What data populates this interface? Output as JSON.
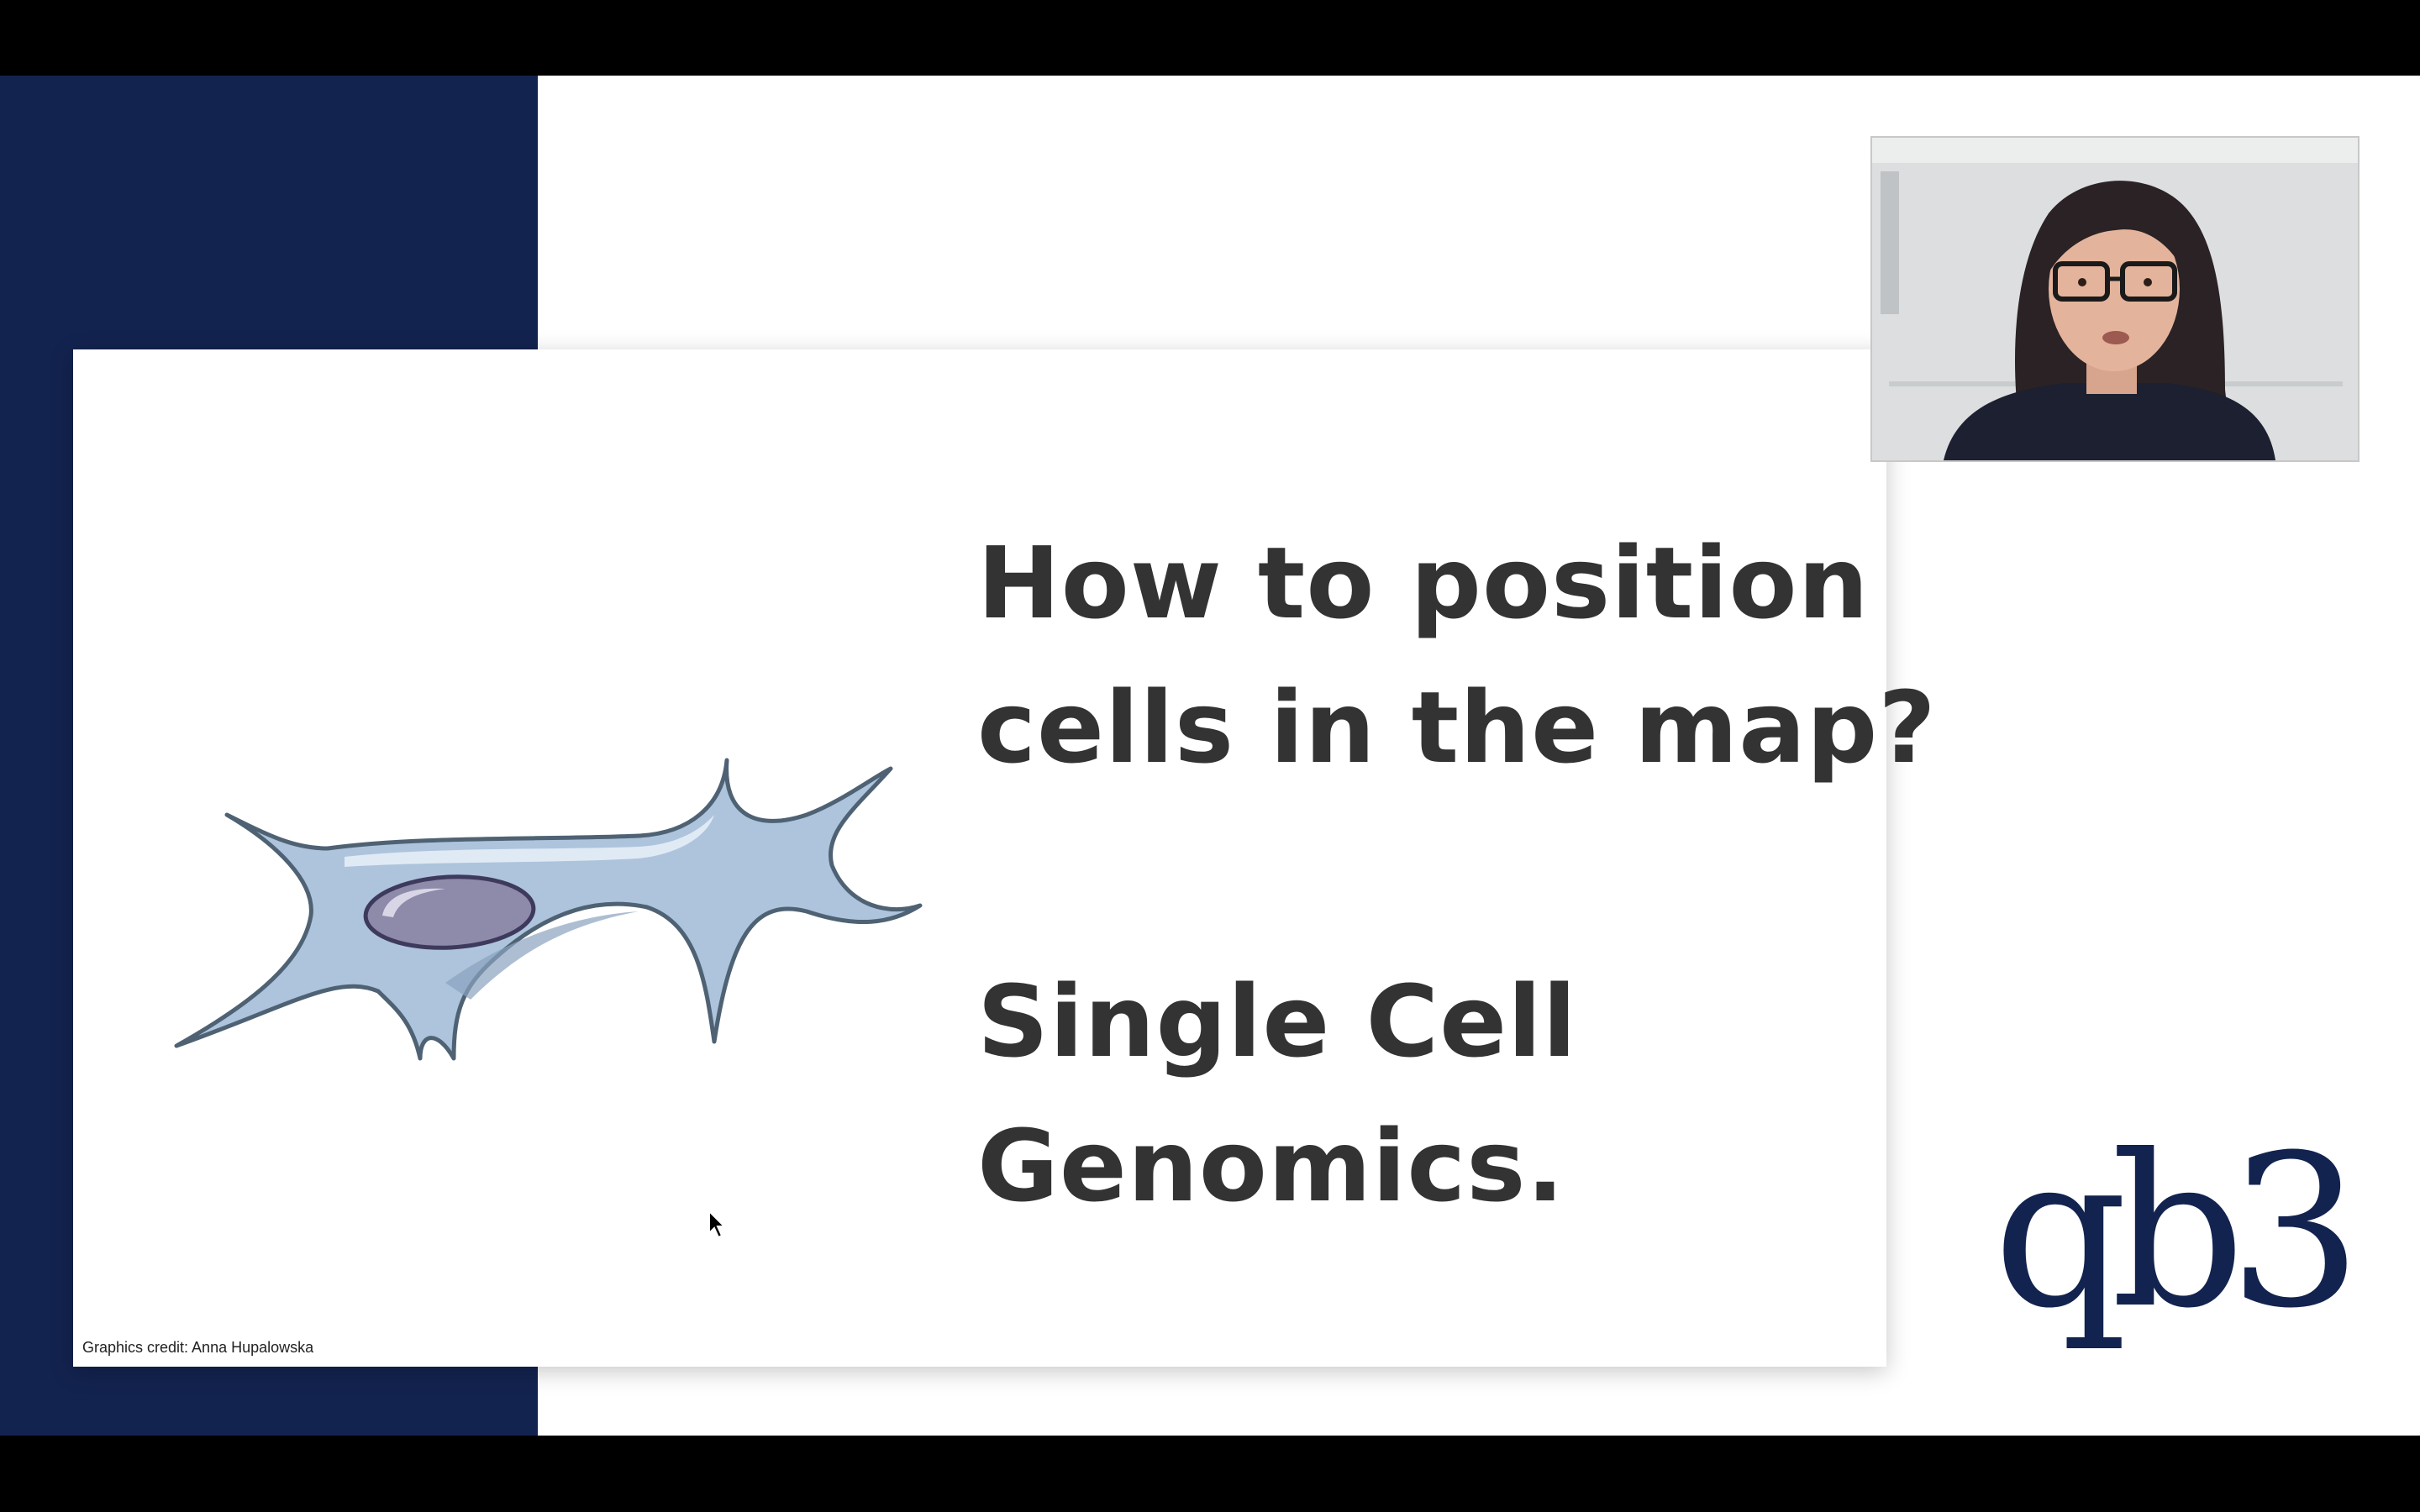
{
  "slide": {
    "title_lines": [
      "How to position",
      "cells in the map?"
    ],
    "subtitle_lines": [
      "Single Cell",
      "Genomics."
    ],
    "credit": "Graphics credit: Anna Hupalowska"
  },
  "branding": {
    "logo_text": "qb3"
  },
  "icons": {
    "cell": "cell-illustration",
    "cursor": "mouse-pointer-icon",
    "presenter": "presenter-video"
  },
  "colors": {
    "navy": "#13234f",
    "title_text": "#333333",
    "cell_fill": "#adc4dc",
    "cell_outline": "#4f6274",
    "nucleus_fill": "#8e8aaa"
  }
}
